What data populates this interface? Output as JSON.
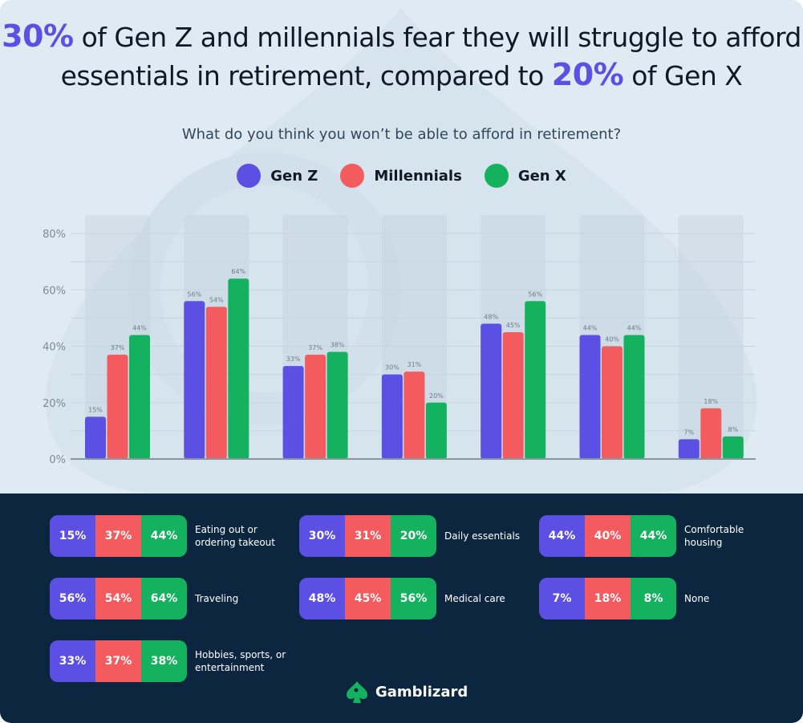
{
  "title": {
    "pre": "",
    "hl1": "30%",
    "mid": " of Gen Z and millennials fear they will struggle to afford essentials in retirement, compared to ",
    "hl2": "20%",
    "post": " of Gen X"
  },
  "subtitle": "What do you think you won’t be able to afford in retirement?",
  "colors": {
    "gen_z": "#5b50e3",
    "millennials": "#f45b5e",
    "gen_x": "#14b15f",
    "accent": "#5b50e3",
    "footer_bg": "#0d2640"
  },
  "chart_data": {
    "type": "bar",
    "categories": [
      "Eating out or ordering takeout",
      "Traveling",
      "Hobbies, sports, or entertainment",
      "Daily essentials",
      "Medical care",
      "Comfortable housing",
      "None"
    ],
    "series": [
      {
        "name": "Gen Z",
        "values": [
          15,
          56,
          33,
          30,
          48,
          44,
          7
        ]
      },
      {
        "name": "Millennials",
        "values": [
          37,
          54,
          37,
          31,
          45,
          40,
          18
        ]
      },
      {
        "name": "Gen X",
        "values": [
          44,
          64,
          38,
          20,
          56,
          44,
          8
        ]
      }
    ],
    "yticks": [
      "0%",
      "20%",
      "40%",
      "60%",
      "80%"
    ],
    "ylim": [
      0,
      80
    ],
    "grid": true,
    "legend": "top-center"
  },
  "legend": [
    "Gen Z",
    "Millennials",
    "Gen X"
  ],
  "table": [
    {
      "label": "Eating out or ordering takeout",
      "values": [
        "15%",
        "37%",
        "44%"
      ]
    },
    {
      "label": "Daily essentials",
      "values": [
        "30%",
        "31%",
        "20%"
      ]
    },
    {
      "label": "Comfortable housing",
      "values": [
        "44%",
        "40%",
        "44%"
      ]
    },
    {
      "label": "Traveling",
      "values": [
        "56%",
        "54%",
        "64%"
      ]
    },
    {
      "label": "Medical care",
      "values": [
        "48%",
        "45%",
        "56%"
      ]
    },
    {
      "label": "None",
      "values": [
        "7%",
        "18%",
        "8%"
      ]
    },
    {
      "label": "Hobbies, sports, or entertainment",
      "values": [
        "33%",
        "37%",
        "38%"
      ]
    }
  ],
  "brand": "Gamblizard"
}
